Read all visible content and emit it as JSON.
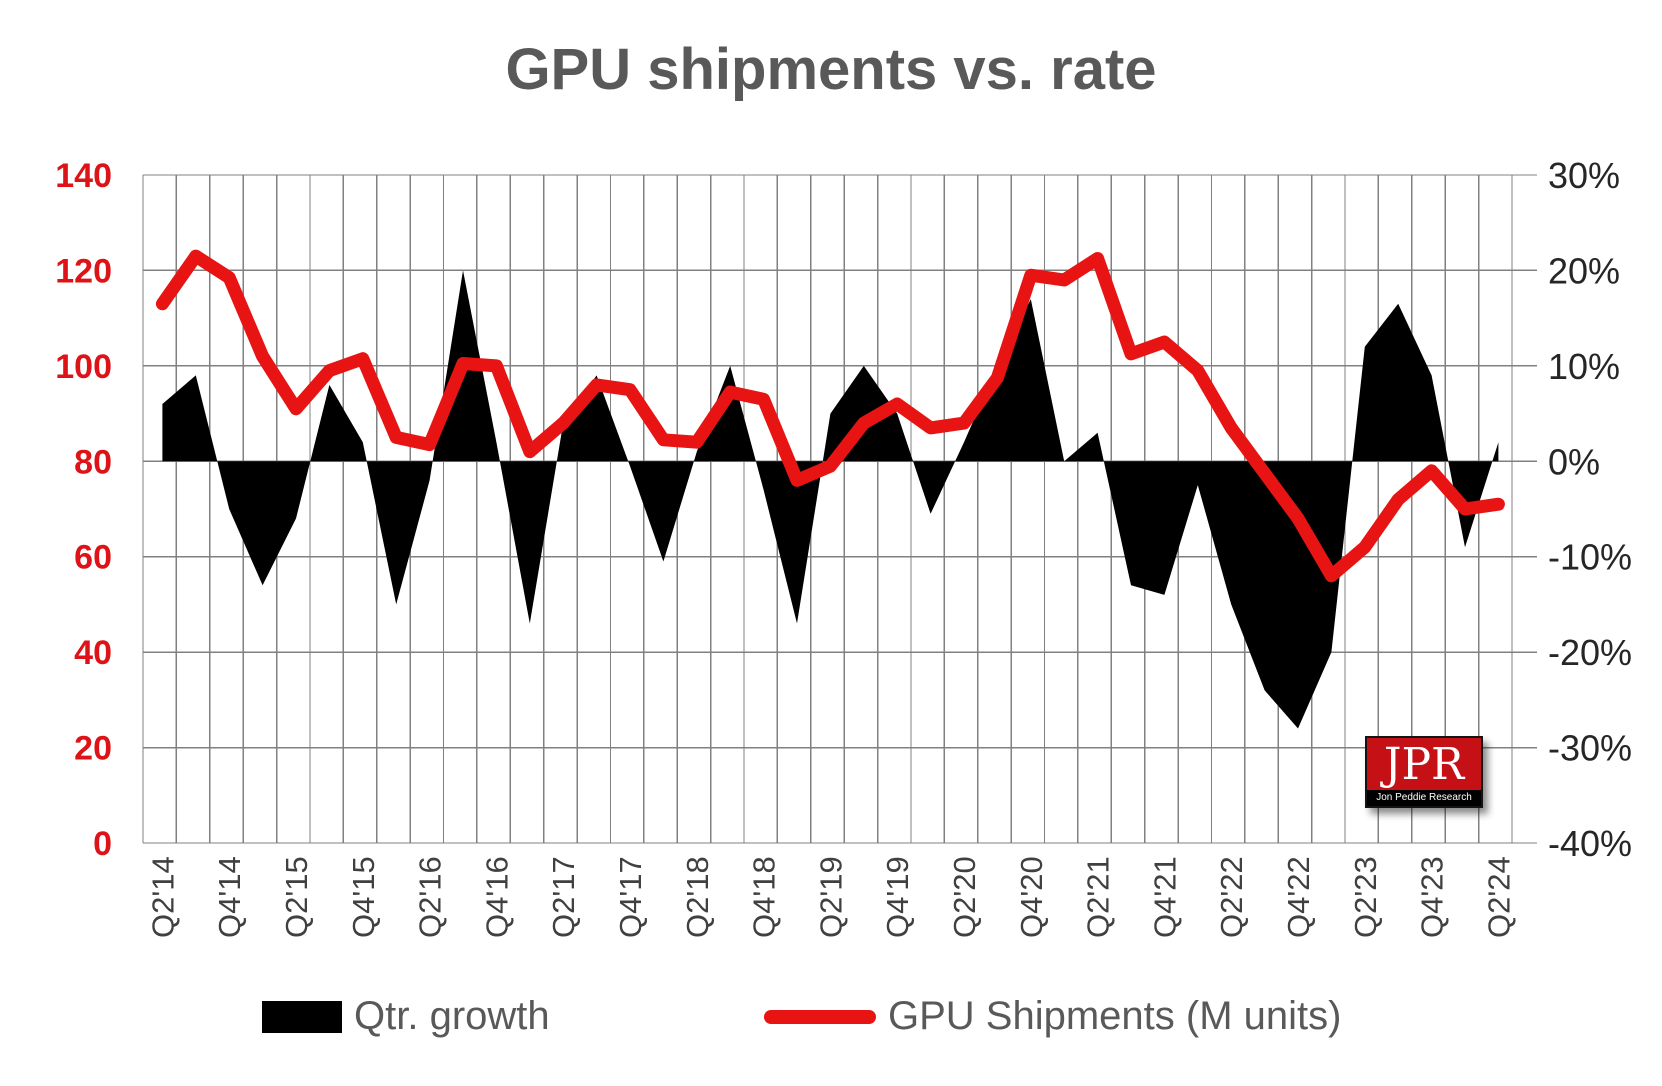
{
  "title": "GPU shipments vs. rate",
  "legend": {
    "growth_label": "Qtr. growth",
    "shipments_label": "GPU Shipments (M units)"
  },
  "logo": {
    "acronym": "JPR",
    "name": "Jon Peddie Research"
  },
  "colors": {
    "line_red": "#e81414",
    "area_black": "#000000",
    "grid_gray": "#808080",
    "title_gray": "#595959",
    "left_tick_red": "#dd1317",
    "right_tick_dark": "#262626",
    "x_label_gray": "#404040",
    "background": "#ffffff"
  },
  "left_axis": {
    "tick_labels": [
      "140",
      "120",
      "100",
      "80",
      "60",
      "40",
      "20",
      "0"
    ],
    "min": 0,
    "max": 140
  },
  "right_axis": {
    "tick_labels": [
      "30%",
      "20%",
      "10%",
      "0%",
      "-10%",
      "-20%",
      "-30%",
      "-40%"
    ],
    "min": -40,
    "max": 30
  },
  "x_axis": {
    "tick_labels": [
      "Q2'14",
      "Q4'14",
      "Q2'15",
      "Q4'15",
      "Q2'16",
      "Q4'16",
      "Q2'17",
      "Q4'17",
      "Q2'18",
      "Q4'18",
      "Q2'19",
      "Q4'19",
      "Q2'20",
      "Q4'20",
      "Q2'21",
      "Q4'21",
      "Q2'22",
      "Q4'22",
      "Q2'23",
      "Q4'23",
      "Q2'24"
    ],
    "label_every": 2
  },
  "chart_data": {
    "type": "combo",
    "grid": true,
    "categories": [
      "Q2'14",
      "Q3'14",
      "Q4'14",
      "Q1'15",
      "Q2'15",
      "Q3'15",
      "Q4'15",
      "Q1'16",
      "Q2'16",
      "Q3'16",
      "Q4'16",
      "Q1'17",
      "Q2'17",
      "Q3'17",
      "Q4'17",
      "Q1'18",
      "Q2'18",
      "Q3'18",
      "Q4'18",
      "Q1'19",
      "Q2'19",
      "Q3'19",
      "Q4'19",
      "Q1'20",
      "Q2'20",
      "Q3'20",
      "Q4'20",
      "Q1'21",
      "Q2'21",
      "Q3'21",
      "Q4'21",
      "Q1'22",
      "Q2'22",
      "Q3'22",
      "Q4'22",
      "Q1'23",
      "Q2'23",
      "Q3'23",
      "Q4'23",
      "Q1'24",
      "Q2'24"
    ],
    "series": [
      {
        "name": "Qtr. growth",
        "type": "area",
        "axis": "right",
        "unit": "%",
        "color": "#000000",
        "values": [
          6,
          9,
          -5,
          -13,
          -6,
          8,
          2,
          -15,
          -2,
          20,
          2,
          -17,
          4,
          9,
          -0.5,
          -10.5,
          1,
          10,
          -3,
          -17,
          5,
          10,
          5,
          -5.5,
          2,
          10,
          17,
          0,
          3,
          -13,
          -14,
          -2.5,
          -15,
          -24,
          -28,
          -20,
          12,
          16.5,
          9,
          -9,
          2
        ]
      },
      {
        "name": "GPU Shipments (M units)",
        "type": "line",
        "axis": "left",
        "unit": "M units",
        "color": "#e81414",
        "values": [
          113,
          123,
          118.5,
          102,
          91,
          99,
          101.5,
          85,
          83.5,
          100.5,
          100,
          82,
          88,
          96,
          95,
          84.5,
          84,
          94.5,
          93,
          76,
          79,
          88,
          92,
          87,
          88,
          97.5,
          119,
          118,
          122.5,
          102.5,
          105,
          99,
          87,
          77.5,
          68,
          56,
          62,
          72,
          78,
          70,
          71
        ]
      }
    ],
    "left_axis_range": [
      0,
      140
    ],
    "right_axis_range": [
      -40,
      30
    ],
    "baseline_right_value": 0,
    "legend_position": "bottom"
  }
}
